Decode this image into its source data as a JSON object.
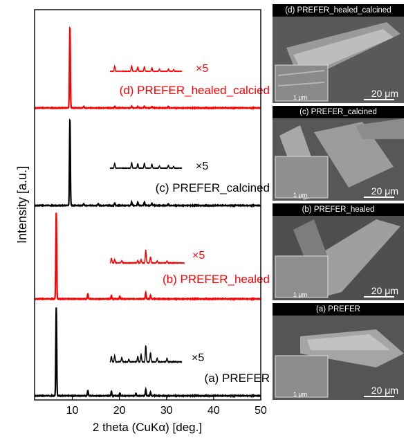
{
  "chart_data": {
    "type": "line",
    "xlabel": "2 theta (CuKα) [deg.]",
    "ylabel": "Intensity [a.u.]",
    "xlim": [
      2,
      50
    ],
    "xticks": [
      10,
      20,
      30,
      40,
      50
    ],
    "grid": false,
    "series": [
      {
        "name": "(d) PREFER_healed_calcied",
        "color": "#ff0000",
        "peaks": [
          [
            9.5,
            1.0
          ],
          [
            12.4,
            0.02
          ],
          [
            19.0,
            0.02
          ],
          [
            22.6,
            0.02
          ],
          [
            23.9,
            0.02
          ],
          [
            25.3,
            0.02
          ],
          [
            26.9,
            0.02
          ],
          [
            30.4,
            0.02
          ]
        ],
        "zoom_label": "×5",
        "zoom_peaks": [
          [
            19.0,
            0.45
          ],
          [
            22.6,
            0.5
          ],
          [
            23.9,
            0.4
          ],
          [
            25.3,
            0.42
          ],
          [
            26.9,
            0.3
          ],
          [
            28.5,
            0.2
          ],
          [
            30.4,
            0.2
          ],
          [
            31.5,
            0.15
          ]
        ]
      },
      {
        "name": "(c) PREFER_calcined",
        "color": "#000000",
        "peaks": [
          [
            9.5,
            1.0
          ],
          [
            12.4,
            0.02
          ],
          [
            15.5,
            0.02
          ],
          [
            19.0,
            0.03
          ],
          [
            22.6,
            0.04
          ],
          [
            23.9,
            0.04
          ],
          [
            25.3,
            0.04
          ],
          [
            26.9,
            0.03
          ],
          [
            30.4,
            0.02
          ]
        ],
        "zoom_label": "×5",
        "zoom_peaks": [
          [
            19.0,
            0.42
          ],
          [
            22.6,
            0.5
          ],
          [
            23.9,
            0.4
          ],
          [
            25.3,
            0.45
          ],
          [
            26.9,
            0.35
          ],
          [
            28.5,
            0.2
          ],
          [
            30.4,
            0.25
          ],
          [
            31.5,
            0.15
          ]
        ]
      },
      {
        "name": "(b) PREFER_healed",
        "color": "#ff0000",
        "peaks": [
          [
            6.6,
            1.0
          ],
          [
            13.3,
            0.06
          ],
          [
            18.3,
            0.04
          ],
          [
            20.1,
            0.03
          ],
          [
            25.6,
            0.07
          ],
          [
            26.6,
            0.04
          ]
        ],
        "zoom_label": "×5",
        "zoom_peaks": [
          [
            18.3,
            0.28
          ],
          [
            19.0,
            0.2
          ],
          [
            20.5,
            0.15
          ],
          [
            23.9,
            0.15
          ],
          [
            24.6,
            0.2
          ],
          [
            25.6,
            0.78
          ],
          [
            26.6,
            0.35
          ],
          [
            28.0,
            0.12
          ],
          [
            30.1,
            0.12
          ]
        ]
      },
      {
        "name": "(a) PREFER",
        "color": "#000000",
        "peaks": [
          [
            6.6,
            1.0
          ],
          [
            13.3,
            0.06
          ],
          [
            18.3,
            0.05
          ],
          [
            20.1,
            0.03
          ],
          [
            23.5,
            0.03
          ],
          [
            25.6,
            0.07
          ],
          [
            26.6,
            0.04
          ]
        ],
        "zoom_label": "×5",
        "zoom_peaks": [
          [
            18.3,
            0.3
          ],
          [
            19.0,
            0.35
          ],
          [
            20.5,
            0.25
          ],
          [
            22.0,
            0.15
          ],
          [
            23.9,
            0.3
          ],
          [
            24.6,
            0.4
          ],
          [
            25.6,
            0.9
          ],
          [
            26.6,
            0.5
          ],
          [
            28.0,
            0.2
          ],
          [
            30.1,
            0.2
          ]
        ]
      }
    ]
  },
  "sem_panels": [
    {
      "title": "(d) PREFER_healed_calcined",
      "scale": "20 μm",
      "inset_scale": "1 μm"
    },
    {
      "title": "(c) PREFER_calcined",
      "scale": "20 μm",
      "inset_scale": "1 μm"
    },
    {
      "title": "(b) PREFER_healed",
      "scale": "20 μm",
      "inset_scale": "1 μm"
    },
    {
      "title": "(a) PREFER",
      "scale": "20 μm",
      "inset_scale": "1 μm"
    }
  ]
}
